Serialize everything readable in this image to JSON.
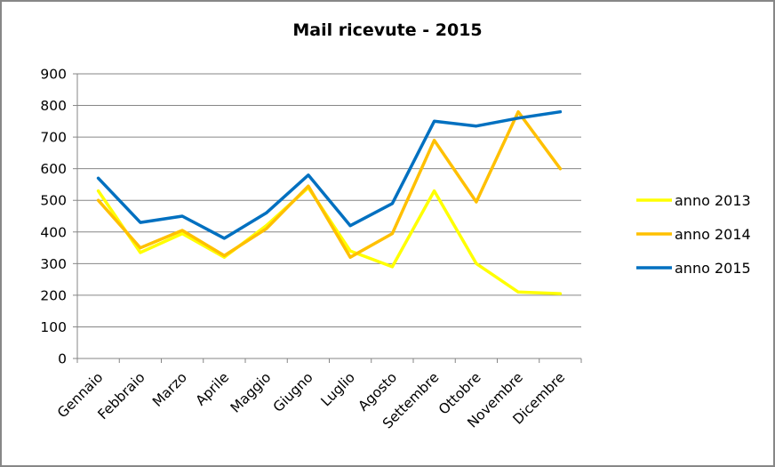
{
  "chart_data": {
    "type": "line",
    "title": "Mail ricevute - 2015",
    "xlabel": "",
    "ylabel": "",
    "ylim": [
      0,
      900
    ],
    "yticks": [
      0,
      100,
      200,
      300,
      400,
      500,
      600,
      700,
      800,
      900
    ],
    "grid": true,
    "legend_position": "right",
    "categories": [
      "Gennaio",
      "Febbraio",
      "Marzo",
      "Aprile",
      "Maggio",
      "Giugno",
      "Luglio",
      "Agosto",
      "Settembre",
      "Ottobre",
      "Novembre",
      "Dicembre"
    ],
    "series": [
      {
        "name": "anno 2013",
        "color": "#FFFF00",
        "values": [
          530,
          335,
          395,
          320,
          420,
          540,
          340,
          290,
          530,
          300,
          210,
          205
        ]
      },
      {
        "name": "anno 2014",
        "color": "#FFC000",
        "values": [
          500,
          350,
          405,
          325,
          410,
          545,
          320,
          395,
          690,
          495,
          780,
          600
        ]
      },
      {
        "name": "anno 2015",
        "color": "#0070C0",
        "values": [
          570,
          430,
          450,
          380,
          460,
          580,
          420,
          490,
          750,
          735,
          760,
          780
        ]
      }
    ]
  }
}
